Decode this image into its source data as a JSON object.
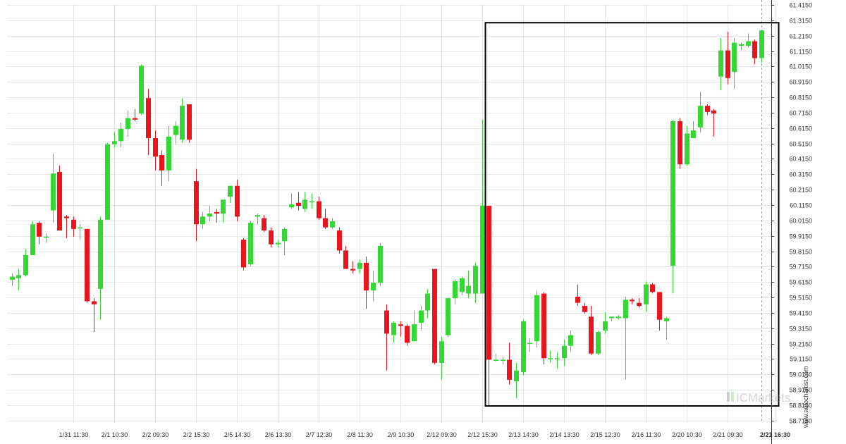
{
  "chart_data": {
    "type": "candlestick",
    "title": "",
    "xlabel": "",
    "ylabel": "",
    "ylim": [
      58.7,
      61.42
    ],
    "grid": true,
    "colors": {
      "up": "#34d734",
      "down": "#e8151e",
      "grid": "#e6e6e6",
      "box": "#000000",
      "axis": "#333333"
    },
    "y_ticks": [
      "61.4150",
      "61.3150",
      "61.2150",
      "61.1150",
      "61.0150",
      "60.9150",
      "60.8150",
      "60.7150",
      "60.6150",
      "60.5150",
      "60.4150",
      "60.3150",
      "60.2150",
      "60.1150",
      "60.0150",
      "59.9150",
      "59.8150",
      "59.7150",
      "59.6150",
      "59.5150",
      "59.4150",
      "59.3150",
      "59.2150",
      "59.1150",
      "59.0150",
      "58.9150",
      "58.8150",
      "58.7150"
    ],
    "x_ticks": [
      {
        "label": "1/31 11:30",
        "i": 9
      },
      {
        "label": "2/1 10:30",
        "i": 15
      },
      {
        "label": "2/2 09:30",
        "i": 21
      },
      {
        "label": "2/2 15:30",
        "i": 27
      },
      {
        "label": "2/5 14:30",
        "i": 33
      },
      {
        "label": "2/6 13:30",
        "i": 39
      },
      {
        "label": "2/7 12:30",
        "i": 45
      },
      {
        "label": "2/8 11:30",
        "i": 51
      },
      {
        "label": "2/9 10:30",
        "i": 57
      },
      {
        "label": "2/12 09:30",
        "i": 63
      },
      {
        "label": "2/12 15:30",
        "i": 69
      },
      {
        "label": "2/13 14:30",
        "i": 75
      },
      {
        "label": "2/14 13:30",
        "i": 81
      },
      {
        "label": "2/15 12:30",
        "i": 87
      },
      {
        "label": "2/16 11:30",
        "i": 93
      },
      {
        "label": "2/20 10:30",
        "i": 99
      },
      {
        "label": "2/21 09:30",
        "i": 105
      },
      {
        "label": "2/21 16:30",
        "i": 112,
        "bold": true
      }
    ],
    "candles": [
      [
        59.63,
        59.65,
        59.59,
        59.67
      ],
      [
        59.64,
        59.66,
        59.56,
        59.7
      ],
      [
        59.66,
        59.79,
        59.65,
        59.83
      ],
      [
        59.79,
        59.99,
        59.79,
        60.01
      ],
      [
        60.0,
        59.91,
        59.86,
        60.01
      ],
      [
        59.91,
        59.91,
        59.87,
        59.93
      ],
      [
        60.08,
        60.32,
        60.0,
        60.45
      ],
      [
        60.33,
        59.95,
        59.95,
        60.37
      ],
      [
        60.04,
        60.03,
        59.9,
        60.05
      ],
      [
        60.02,
        59.96,
        59.91,
        60.04
      ],
      [
        59.97,
        59.97,
        59.89,
        59.99
      ],
      [
        59.96,
        59.49,
        59.48,
        59.96
      ],
      [
        59.49,
        59.47,
        59.29,
        59.51
      ],
      [
        59.57,
        60.02,
        59.37,
        60.04
      ],
      [
        60.02,
        60.51,
        60.02,
        60.52
      ],
      [
        60.51,
        60.53,
        60.49,
        60.59
      ],
      [
        60.53,
        60.61,
        60.49,
        60.65
      ],
      [
        60.61,
        60.68,
        60.56,
        60.73
      ],
      [
        60.68,
        60.67,
        60.66,
        60.74
      ],
      [
        60.71,
        61.02,
        60.7,
        61.03
      ],
      [
        60.81,
        60.55,
        60.44,
        60.87
      ],
      [
        60.55,
        60.43,
        60.34,
        60.6
      ],
      [
        60.44,
        60.34,
        60.24,
        60.47
      ],
      [
        60.34,
        60.56,
        60.27,
        60.63
      ],
      [
        60.57,
        60.63,
        60.51,
        60.66
      ],
      [
        60.54,
        60.76,
        60.52,
        60.81
      ],
      [
        60.77,
        60.54,
        60.52,
        60.77
      ],
      [
        60.27,
        59.99,
        59.88,
        60.35
      ],
      [
        59.99,
        60.04,
        59.96,
        60.07
      ],
      [
        60.04,
        60.06,
        60.01,
        60.11
      ],
      [
        60.07,
        60.06,
        60.0,
        60.09
      ],
      [
        60.06,
        60.15,
        60.0,
        60.15
      ],
      [
        60.17,
        60.24,
        60.13,
        60.24
      ],
      [
        60.24,
        60.04,
        60.01,
        60.28
      ],
      [
        59.89,
        59.71,
        59.69,
        59.9
      ],
      [
        59.73,
        60.0,
        59.72,
        60.01
      ],
      [
        60.04,
        60.05,
        59.99,
        60.06
      ],
      [
        60.03,
        59.95,
        59.94,
        60.05
      ],
      [
        59.95,
        59.86,
        59.84,
        59.97
      ],
      [
        59.86,
        59.87,
        59.84,
        59.89
      ],
      [
        59.88,
        59.96,
        59.79,
        59.97
      ],
      [
        60.1,
        60.12,
        60.09,
        60.19
      ],
      [
        60.13,
        60.11,
        60.08,
        60.2
      ],
      [
        60.09,
        60.15,
        60.07,
        60.2
      ],
      [
        60.14,
        60.14,
        60.09,
        60.19
      ],
      [
        60.14,
        60.03,
        60.02,
        60.17
      ],
      [
        60.03,
        59.97,
        59.96,
        60.09
      ],
      [
        59.97,
        60.01,
        59.96,
        60.03
      ],
      [
        59.95,
        59.82,
        59.8,
        59.97
      ],
      [
        59.82,
        59.7,
        59.7,
        59.85
      ],
      [
        59.7,
        59.69,
        59.67,
        59.75
      ],
      [
        59.7,
        59.74,
        59.67,
        59.76
      ],
      [
        59.74,
        59.56,
        59.44,
        59.78
      ],
      [
        59.56,
        59.61,
        59.49,
        59.69
      ],
      [
        59.61,
        59.85,
        59.59,
        59.87
      ],
      [
        59.43,
        59.28,
        59.04,
        59.47
      ],
      [
        59.27,
        59.35,
        59.22,
        59.36
      ],
      [
        59.34,
        59.33,
        59.26,
        59.36
      ],
      [
        59.33,
        59.22,
        59.2,
        59.34
      ],
      [
        59.23,
        59.34,
        59.23,
        59.43
      ],
      [
        59.35,
        59.43,
        59.3,
        59.46
      ],
      [
        59.43,
        59.54,
        59.38,
        59.57
      ],
      [
        59.7,
        59.09,
        59.08,
        59.7
      ],
      [
        59.09,
        59.23,
        58.98,
        59.26
      ],
      [
        59.27,
        59.51,
        59.26,
        59.51
      ],
      [
        59.51,
        59.62,
        59.47,
        59.63
      ],
      [
        59.55,
        59.64,
        59.53,
        59.65
      ],
      [
        59.54,
        59.59,
        59.51,
        59.69
      ],
      [
        59.54,
        59.72,
        59.48,
        59.74
      ],
      [
        59.54,
        60.11,
        59.54,
        60.67
      ],
      [
        60.11,
        59.11,
        58.81,
        60.11
      ],
      [
        59.11,
        59.11,
        59.1,
        59.15
      ],
      [
        59.11,
        59.11,
        59.08,
        59.13
      ],
      [
        59.11,
        58.98,
        58.95,
        59.22
      ],
      [
        58.97,
        59.04,
        58.86,
        59.09
      ],
      [
        59.03,
        59.36,
        59.01,
        59.37
      ],
      [
        59.22,
        59.22,
        59.16,
        59.25
      ],
      [
        59.23,
        59.53,
        59.19,
        59.56
      ],
      [
        59.54,
        59.12,
        59.08,
        59.55
      ],
      [
        59.12,
        59.12,
        59.09,
        59.17
      ],
      [
        59.12,
        59.12,
        59.05,
        59.16
      ],
      [
        59.12,
        59.2,
        59.07,
        59.24
      ],
      [
        59.2,
        59.27,
        59.16,
        59.3
      ],
      [
        59.52,
        59.48,
        59.46,
        59.6
      ],
      [
        59.46,
        59.42,
        59.41,
        59.48
      ],
      [
        59.39,
        59.15,
        59.14,
        59.46
      ],
      [
        59.15,
        59.29,
        59.14,
        59.3
      ],
      [
        59.3,
        59.36,
        59.28,
        59.42
      ],
      [
        59.38,
        59.39,
        59.36,
        59.39
      ],
      [
        59.38,
        59.39,
        59.37,
        59.4
      ],
      [
        59.38,
        59.5,
        58.98,
        59.52
      ],
      [
        59.5,
        59.49,
        59.47,
        59.51
      ],
      [
        59.48,
        59.46,
        59.45,
        59.51
      ],
      [
        59.47,
        59.6,
        59.42,
        59.62
      ],
      [
        59.6,
        59.55,
        59.54,
        59.61
      ],
      [
        59.55,
        59.37,
        59.3,
        59.55
      ],
      [
        59.36,
        59.38,
        59.24,
        59.39
      ],
      [
        59.72,
        60.66,
        59.54,
        60.67
      ],
      [
        60.66,
        60.38,
        60.35,
        60.68
      ],
      [
        60.38,
        60.58,
        60.37,
        60.63
      ],
      [
        60.55,
        60.6,
        60.55,
        60.66
      ],
      [
        60.62,
        60.76,
        60.59,
        60.85
      ],
      [
        60.76,
        60.72,
        60.7,
        60.77
      ],
      [
        60.73,
        60.71,
        60.56,
        60.74
      ],
      [
        60.95,
        61.12,
        60.86,
        61.2
      ],
      [
        61.12,
        60.94,
        60.9,
        61.24
      ],
      [
        60.98,
        61.17,
        60.87,
        61.2
      ],
      [
        61.15,
        61.16,
        61.12,
        61.17
      ],
      [
        61.15,
        61.18,
        61.14,
        61.23
      ],
      [
        61.18,
        61.07,
        61.03,
        61.19
      ],
      [
        61.07,
        61.25,
        61.04,
        61.25
      ]
    ],
    "highlight_box": {
      "start_index": 70,
      "end_index": 112,
      "low": 58.81,
      "high": 61.3
    }
  },
  "watermark": {
    "brand": "ICMarkets",
    "site": "www.autochartist.com"
  }
}
